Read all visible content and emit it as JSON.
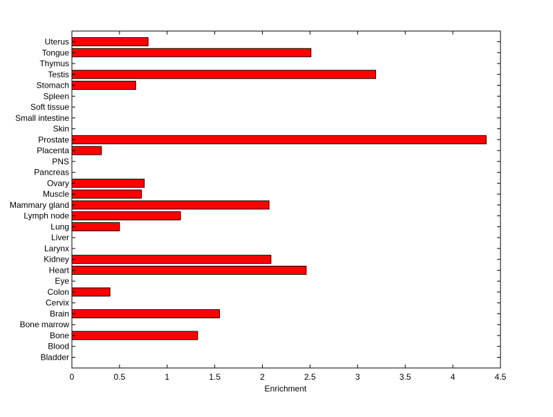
{
  "chart_data": {
    "type": "bar",
    "orientation": "horizontal",
    "title": "",
    "xlabel": "Enrichment",
    "ylabel": "",
    "xlim": [
      0,
      4.5
    ],
    "xticks": [
      0,
      0.5,
      1,
      1.5,
      2,
      2.5,
      3,
      3.5,
      4,
      4.5
    ],
    "xtick_labels": [
      "0",
      "0.5",
      "1",
      "1.5",
      "2",
      "2.5",
      "3",
      "3.5",
      "4",
      "4.5"
    ],
    "grid": false,
    "bar_color": "#ff0000",
    "categories": [
      "Bladder",
      "Blood",
      "Bone",
      "Bone marrow",
      "Brain",
      "Cervix",
      "Colon",
      "Eye",
      "Heart",
      "Kidney",
      "Larynx",
      "Liver",
      "Lung",
      "Lymph node",
      "Mammary gland",
      "Muscle",
      "Ovary",
      "Pancreas",
      "PNS",
      "Placenta",
      "Prostate",
      "Skin",
      "Small intestine",
      "Soft tissue",
      "Spleen",
      "Stomach",
      "Testis",
      "Thymus",
      "Tongue",
      "Uterus"
    ],
    "values": [
      0,
      0,
      1.32,
      0,
      1.55,
      0,
      0.4,
      0,
      2.46,
      2.09,
      0,
      0,
      0.5,
      1.14,
      2.07,
      0.73,
      0.76,
      0,
      0,
      0.31,
      4.35,
      0,
      0,
      0,
      0,
      0.67,
      3.19,
      0,
      2.51,
      0.8
    ]
  }
}
